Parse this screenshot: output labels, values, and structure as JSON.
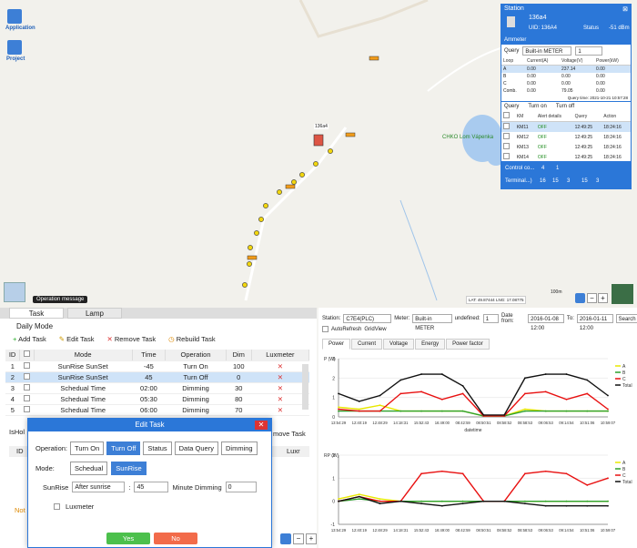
{
  "app": {
    "application_label": "Application",
    "project_label": "Project",
    "operation_message": "Operation message"
  },
  "map": {
    "marker_label": "136a4",
    "place_label": "CHKO Lom Vápenka",
    "scale_label": "100m",
    "coords_label": "LAT: 49.87444 LNG: 17.08775"
  },
  "station": {
    "title": "Station",
    "name": "136a4",
    "uid": "UID:   136A4",
    "status_label": "Status",
    "signal": "-51 dBm",
    "ammeter_label": "Ammeter",
    "query_label": "Query",
    "meter_select": "Built-in METER",
    "meter_num": "1",
    "loop_headers": [
      "Loop",
      "Current(A)",
      "Voltage(V)",
      "Power(kW)"
    ],
    "loop_rows": [
      [
        "A",
        "0.00",
        "237.14",
        "0.00"
      ],
      [
        "B",
        "0.00",
        "0.00",
        "0.00"
      ],
      [
        "C",
        "0.00",
        "0.00",
        "0.00"
      ],
      [
        "Comb.",
        "0.00",
        "79.05",
        "0.00"
      ]
    ],
    "query_time": "Query time: 2021-10-21 10:57:28",
    "query2_label": "Query",
    "turn_on_label": "Turn on",
    "turn_off_label": "Turn off",
    "km_headers": [
      "KM",
      "Alert details",
      "Query",
      "Action"
    ],
    "km_rows": [
      [
        "KM11",
        "OFF",
        "12:49:25",
        "18:24:16"
      ],
      [
        "KM12",
        "OFF",
        "12:49:25",
        "18:24:16"
      ],
      [
        "KM13",
        "OFF",
        "12:49:25",
        "18:24:16"
      ],
      [
        "KM14",
        "OFF",
        "12:49:25",
        "18:24:16"
      ]
    ],
    "control_label": "Control co...",
    "control_a": "4",
    "control_b": "1",
    "terminal_label": "Terminal...)",
    "term_counts": [
      "16",
      "15",
      "3",
      "15",
      "3"
    ]
  },
  "tabs": {
    "task": "Task",
    "lamp": "Lamp"
  },
  "daily": {
    "title": "Daily Mode",
    "add": "Add Task",
    "edit": "Edit Task",
    "remove": "Remove Task",
    "rebuild": "Rebuild Task",
    "headers": [
      "ID",
      "",
      "Mode",
      "Time",
      "Operation",
      "Dim",
      "Luxmeter"
    ],
    "rows": [
      [
        "1",
        "SunRise SunSet",
        "-45",
        "Turn On",
        "100"
      ],
      [
        "2",
        "SunRise SunSet",
        "45",
        "Turn Off",
        "0"
      ],
      [
        "3",
        "Schedual Time",
        "02:00",
        "Dimming",
        "30"
      ],
      [
        "4",
        "Schedual Time",
        "05:30",
        "Dimming",
        "80"
      ],
      [
        "5",
        "Schedual Time",
        "06:00",
        "Dimming",
        "70"
      ]
    ],
    "holiday_label": "IsHol",
    "remove_task2": "move Task",
    "id_header2": "ID",
    "lux_header2": "Luxr",
    "note": "Not"
  },
  "modal": {
    "title": "Edit Task",
    "operation_label": "Operation:",
    "ops": [
      "Turn On",
      "Turn Off",
      "Status",
      "Data Query",
      "Dimming"
    ],
    "mode_label": "Mode:",
    "modes": [
      "Schedual",
      "SunRise"
    ],
    "sunrise_label": "SunRise",
    "sunrise_select": "After sunrise",
    "minutes_value": "45",
    "minute_dimming_label": "Minute Dimming",
    "dim_value": "0",
    "luxmeter_label": "Luxmeter",
    "yes": "Yes",
    "no": "No"
  },
  "right": {
    "station_label": "Station:",
    "station_value": "C7E4(PLC)",
    "meter_label": "Meter:",
    "meter_value": "Built-in METER",
    "undefined_label": "undefined:",
    "undefined_value": "1",
    "date_from_label": "Date from:",
    "date_from": "2016-01-08 12:00",
    "to_label": "To:",
    "date_to": "2016-01-11 12:00",
    "search": "Search",
    "autorefresh": "AutoRefresh",
    "gridview": "GridView",
    "tabs": [
      "Power",
      "Current",
      "Voltage",
      "Energy",
      "Power factor"
    ]
  },
  "chart_data": [
    {
      "type": "line",
      "ylabel": "P (W)",
      "xlabel": "datetime",
      "ylim": [
        0,
        3
      ],
      "x": [
        "13:54:29",
        "12:40:19",
        "12:48:29",
        "14:18:31",
        "15:52:43",
        "16:49:00",
        "08:42:59",
        "08:50:51",
        "08:58:52",
        "08:58:53",
        "09:06:53",
        "09:14:54",
        "10:51:06",
        "10:59:07"
      ],
      "series": [
        {
          "name": "A",
          "color": "#e8e800",
          "values": [
            0.5,
            0.4,
            0.6,
            0.3,
            0.3,
            0.3,
            0.3,
            0.05,
            0.05,
            0.4,
            0.3,
            0.3,
            0.3,
            0.3
          ]
        },
        {
          "name": "B",
          "color": "#2ca02c",
          "values": [
            0.3,
            0.3,
            0.3,
            0.3,
            0.3,
            0.3,
            0.3,
            0.05,
            0.05,
            0.3,
            0.3,
            0.3,
            0.3,
            0.3
          ]
        },
        {
          "name": "C",
          "color": "#e81010",
          "values": [
            0.4,
            0.3,
            0.3,
            1.2,
            1.3,
            0.9,
            1.2,
            0.05,
            0.05,
            1.2,
            1.3,
            0.9,
            1.2,
            0.4
          ]
        },
        {
          "name": "Total",
          "color": "#111111",
          "values": [
            1.2,
            0.8,
            1.1,
            1.9,
            2.2,
            2.2,
            1.6,
            0.1,
            0.1,
            2.0,
            2.2,
            2.2,
            1.9,
            1.1
          ]
        }
      ]
    },
    {
      "type": "line",
      "ylabel": "RP (W)",
      "ylim": [
        -1,
        2
      ],
      "x": [
        "13:54:29",
        "12:40:19",
        "12:48:29",
        "14:18:31",
        "15:52:43",
        "16:49:00",
        "08:42:59",
        "08:50:51",
        "08:58:52",
        "08:58:53",
        "09:06:53",
        "09:14:54",
        "10:51:06",
        "10:59:07"
      ],
      "series": [
        {
          "name": "A",
          "color": "#e8e800",
          "values": [
            0.1,
            0.3,
            0.1,
            0.0,
            0.0,
            0.0,
            0.0,
            0.0,
            0.0,
            0.0,
            0.0,
            0.0,
            0.0,
            0.0
          ]
        },
        {
          "name": "B",
          "color": "#2ca02c",
          "values": [
            0.0,
            0.1,
            0.0,
            0.0,
            0.0,
            0.0,
            0.0,
            0.0,
            0.0,
            0.0,
            0.0,
            0.0,
            0.0,
            0.0
          ]
        },
        {
          "name": "C",
          "color": "#e81010",
          "values": [
            0.0,
            0.2,
            0.0,
            0.0,
            1.2,
            1.3,
            1.2,
            0.0,
            0.0,
            1.2,
            1.3,
            1.2,
            0.7,
            1.0
          ]
        },
        {
          "name": "Total",
          "color": "#111111",
          "values": [
            0.0,
            0.2,
            -0.1,
            0.0,
            -0.1,
            -0.2,
            -0.1,
            0.0,
            0.0,
            -0.1,
            -0.2,
            -0.2,
            -0.2,
            -0.2
          ]
        }
      ]
    }
  ]
}
